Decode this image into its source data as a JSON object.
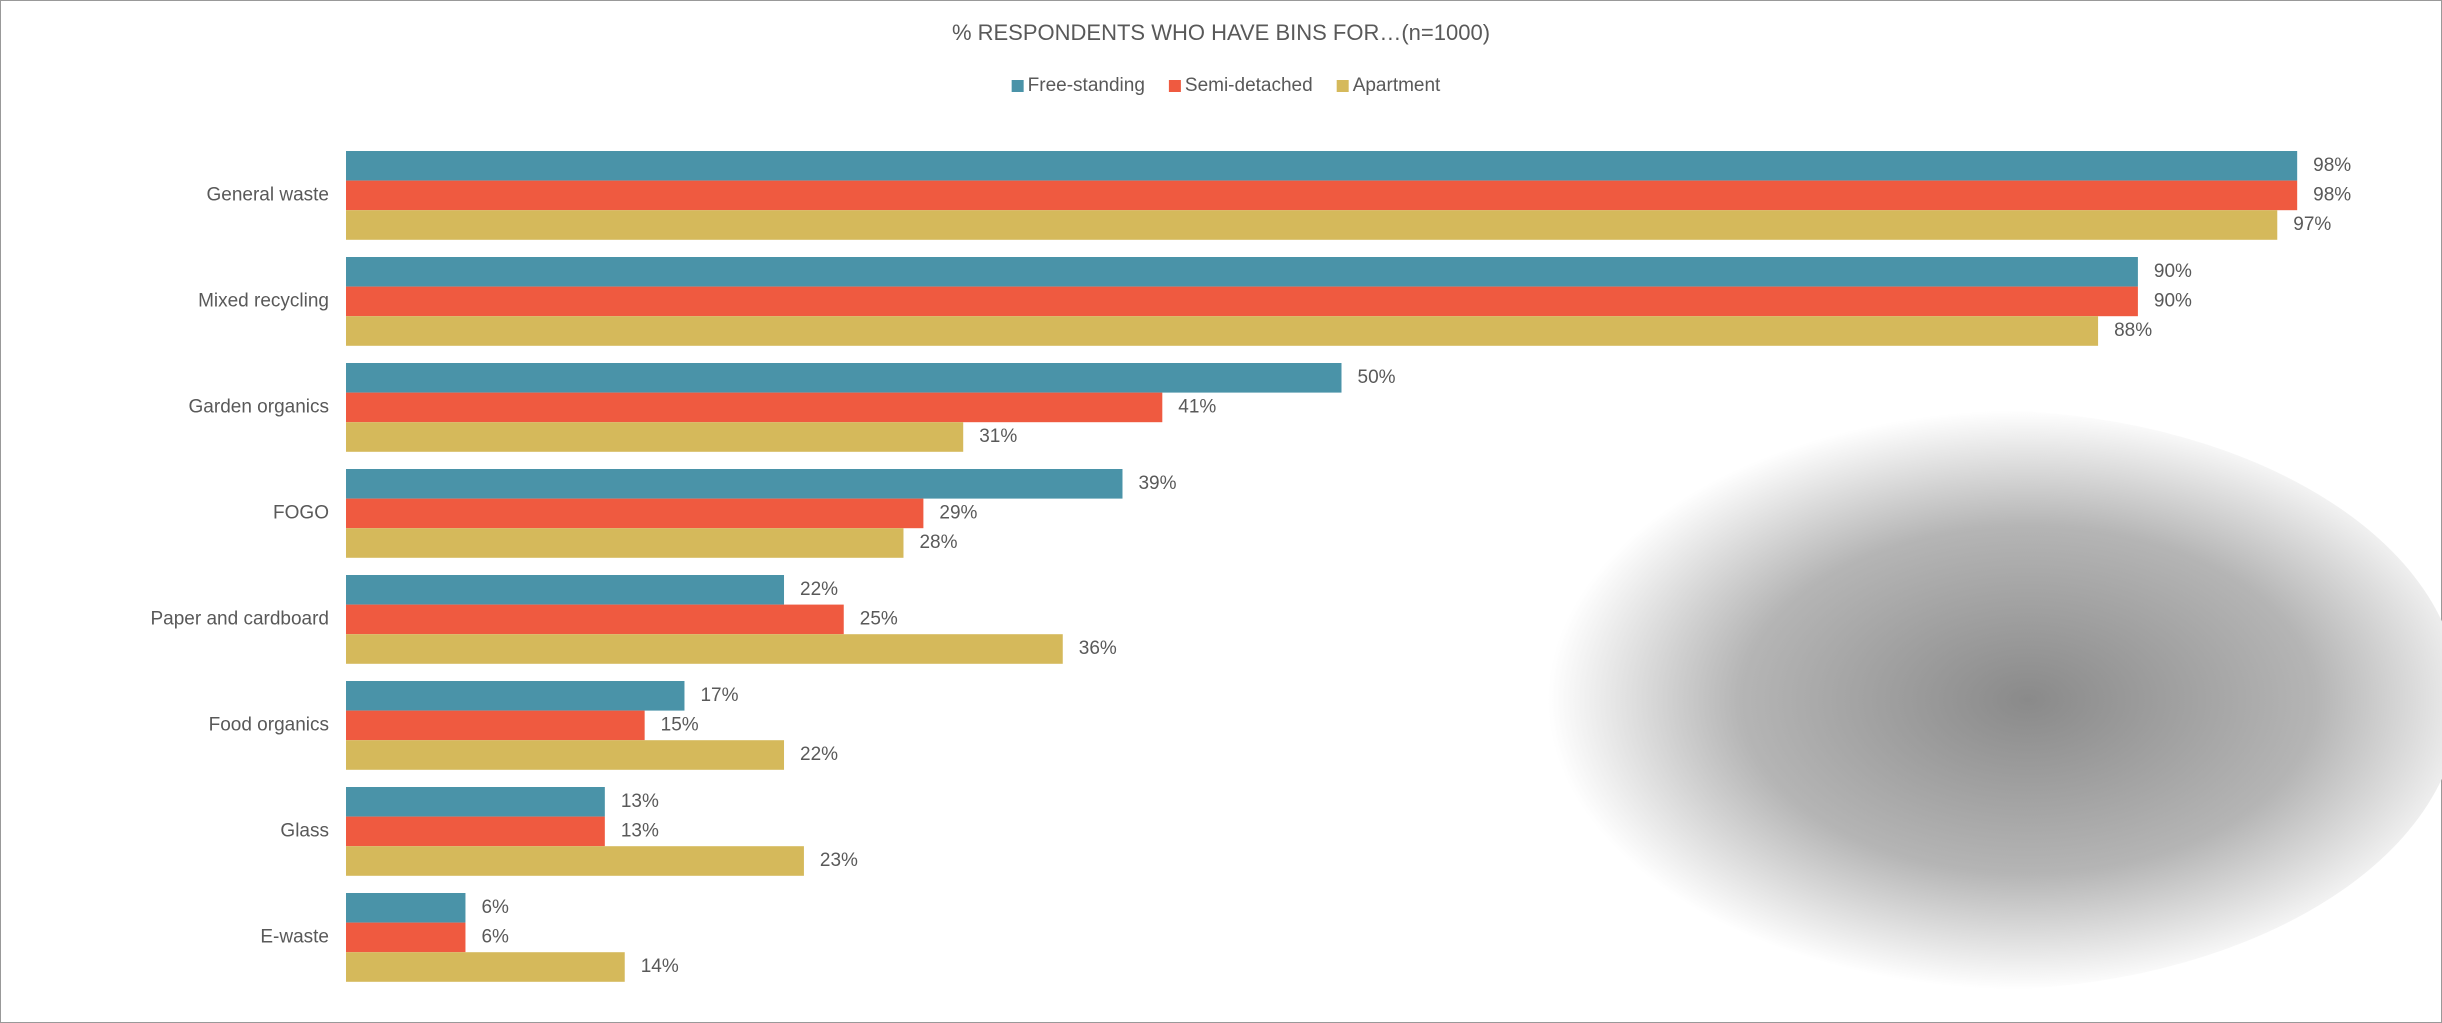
{
  "chart_data": {
    "type": "bar",
    "orientation": "horizontal",
    "title": "% RESPONDENTS WHO HAVE BINS FOR…(n=1000)",
    "categories": [
      "General waste",
      "Mixed recycling",
      "Garden organics",
      "FOGO",
      "Paper and cardboard",
      "Food organics",
      "Glass",
      "E-waste"
    ],
    "series": [
      {
        "name": "Free-standing",
        "color": "#4a93a8",
        "values": [
          98,
          90,
          50,
          39,
          22,
          17,
          13,
          6
        ],
        "value_labels": [
          "98%",
          "90%",
          "50%",
          "39%",
          "22%",
          "17%",
          "13%",
          "6%"
        ]
      },
      {
        "name": "Semi-detached",
        "color": "#ef5a40",
        "values": [
          98,
          90,
          41,
          29,
          25,
          15,
          13,
          6
        ],
        "value_labels": [
          "98%",
          "90%",
          "41%",
          "29%",
          "25%",
          "15%",
          "13%",
          "6%"
        ]
      },
      {
        "name": "Apartment",
        "color": "#d5b95b",
        "values": [
          97,
          88,
          31,
          28,
          36,
          22,
          23,
          14
        ],
        "value_labels": [
          "97%",
          "88%",
          "31%",
          "28%",
          "36%",
          "22%",
          "23%",
          "14%"
        ]
      }
    ],
    "xlim": [
      0,
      100
    ],
    "legend": "top"
  }
}
